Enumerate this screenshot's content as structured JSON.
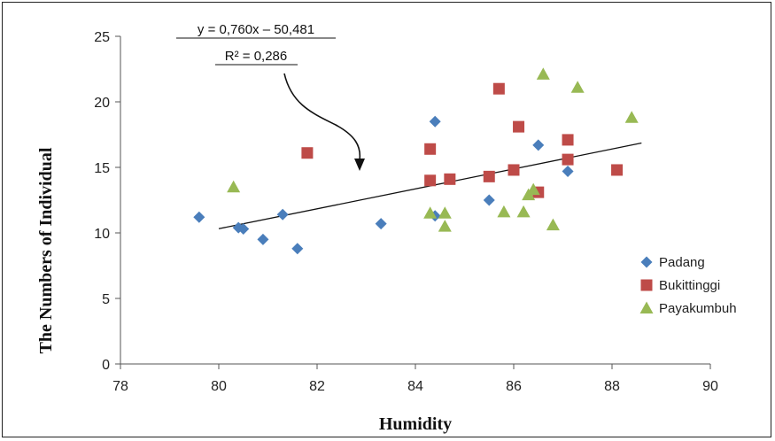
{
  "chart_data": {
    "type": "scatter",
    "xlabel": "Humidity",
    "ylabel": "The Numbers of Individual",
    "xlim": [
      78,
      90
    ],
    "ylim": [
      0,
      25
    ],
    "xticks": [
      78,
      80,
      82,
      84,
      86,
      88,
      90
    ],
    "yticks": [
      0,
      5,
      10,
      15,
      20,
      25
    ],
    "grid": false,
    "legend_position": "right",
    "series": [
      {
        "name": "Padang",
        "marker": "diamond",
        "color": "#4a7ebb",
        "points": [
          [
            79.6,
            11.2
          ],
          [
            80.4,
            10.4
          ],
          [
            80.5,
            10.3
          ],
          [
            80.9,
            9.5
          ],
          [
            81.3,
            11.4
          ],
          [
            81.6,
            8.8
          ],
          [
            83.3,
            10.7
          ],
          [
            84.4,
            18.5
          ],
          [
            84.4,
            11.3
          ],
          [
            85.5,
            12.5
          ],
          [
            86.5,
            16.7
          ],
          [
            87.1,
            14.7
          ]
        ]
      },
      {
        "name": "Bukittinggi",
        "marker": "square",
        "color": "#be4b48",
        "points": [
          [
            81.8,
            16.1
          ],
          [
            84.3,
            16.4
          ],
          [
            84.3,
            14.0
          ],
          [
            84.7,
            14.1
          ],
          [
            85.5,
            14.3
          ],
          [
            85.7,
            21.0
          ],
          [
            86.0,
            14.8
          ],
          [
            86.1,
            18.1
          ],
          [
            86.5,
            13.1
          ],
          [
            87.1,
            17.1
          ],
          [
            87.1,
            15.6
          ],
          [
            88.1,
            14.8
          ]
        ]
      },
      {
        "name": "Payakumbuh",
        "marker": "triangle",
        "color": "#98b954",
        "points": [
          [
            80.3,
            13.5
          ],
          [
            84.3,
            11.5
          ],
          [
            84.6,
            11.5
          ],
          [
            84.6,
            10.5
          ],
          [
            85.8,
            11.6
          ],
          [
            86.2,
            11.6
          ],
          [
            86.3,
            12.9
          ],
          [
            86.4,
            13.3
          ],
          [
            86.6,
            22.1
          ],
          [
            86.8,
            10.6
          ],
          [
            87.3,
            21.1
          ],
          [
            88.4,
            18.8
          ]
        ]
      }
    ],
    "trendline": {
      "x": [
        80.0,
        88.6
      ],
      "slope": 0.76,
      "intercept": -50.481,
      "color": "#111111"
    },
    "annotations": {
      "equation": "y = 0,760x – 50,481",
      "r2": "R² = 0,286"
    }
  }
}
